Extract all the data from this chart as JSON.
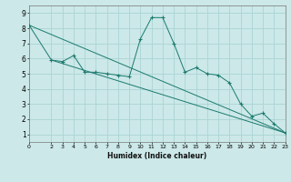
{
  "title": "",
  "xlabel": "Humidex (Indice chaleur)",
  "ylabel": "",
  "background_color": "#cce8e8",
  "line_color": "#1a7a6e",
  "grid_color": "#aad4d4",
  "xlim": [
    0,
    23
  ],
  "ylim": [
    0.5,
    9.5
  ],
  "xticks": [
    0,
    2,
    3,
    4,
    5,
    6,
    7,
    8,
    9,
    10,
    11,
    12,
    13,
    14,
    15,
    16,
    17,
    18,
    19,
    20,
    21,
    22,
    23
  ],
  "yticks": [
    1,
    2,
    3,
    4,
    5,
    6,
    7,
    8,
    9
  ],
  "series": [
    {
      "x": [
        0,
        2,
        3,
        4,
        5,
        6,
        7,
        8,
        9,
        10,
        11,
        12,
        13,
        14,
        15,
        16,
        17,
        18,
        19,
        20,
        21,
        22,
        23
      ],
      "y": [
        8.2,
        5.9,
        5.8,
        6.2,
        5.1,
        5.1,
        5.0,
        4.9,
        4.8,
        7.3,
        8.7,
        8.7,
        7.0,
        5.1,
        5.4,
        5.0,
        4.9,
        4.4,
        3.0,
        2.2,
        2.4,
        1.7,
        1.1
      ],
      "marker": "+"
    },
    {
      "x": [
        0,
        23
      ],
      "y": [
        8.2,
        1.1
      ],
      "marker": null
    },
    {
      "x": [
        2,
        23
      ],
      "y": [
        5.9,
        1.1
      ],
      "marker": null
    }
  ]
}
